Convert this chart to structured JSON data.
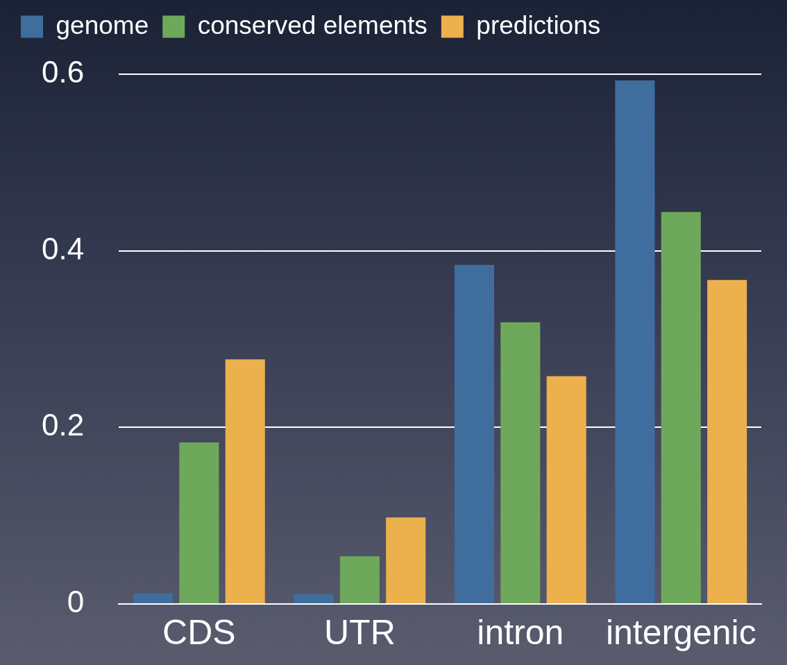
{
  "chart_data": {
    "type": "bar",
    "categories": [
      "CDS",
      "UTR",
      "intron",
      "intergenic"
    ],
    "series": [
      {
        "name": "genome",
        "color": "#3f6e9e",
        "values": [
          0.012,
          0.011,
          0.384,
          0.593
        ]
      },
      {
        "name": "conserved elements",
        "color": "#6ea85a",
        "values": [
          0.183,
          0.054,
          0.319,
          0.444
        ]
      },
      {
        "name": "predictions",
        "color": "#ecb04d",
        "values": [
          0.277,
          0.098,
          0.258,
          0.367
        ]
      }
    ],
    "ylim": [
      0,
      0.6
    ],
    "yticks": [
      {
        "value": 0,
        "label": "0"
      },
      0.2,
      0.4,
      0.6
    ],
    "grid": "y",
    "legend": "top left"
  }
}
